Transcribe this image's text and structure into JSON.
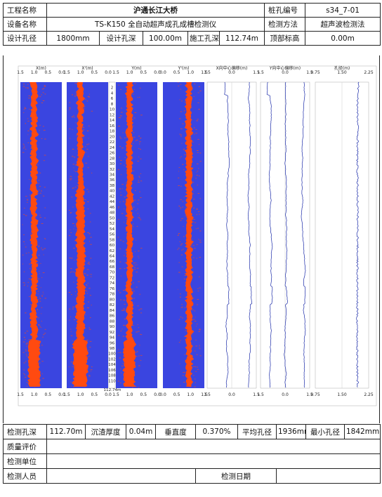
{
  "header": {
    "project_label": "工程名称",
    "project_value": "沪通长江大桥",
    "pile_label": "桩孔编号",
    "pile_value": "s34_7-01",
    "device_label": "设备名称",
    "device_value": "TS-K150 全自动超声成孔成槽检测仪",
    "method_label": "检测方法",
    "method_value": "超声波检测法",
    "design_diameter_label": "设计孔径",
    "design_diameter_value": "1800mm",
    "design_depth_label": "设计孔深",
    "design_depth_value": "100.00m",
    "construction_depth_label": "施工孔深",
    "construction_depth_value": "112.74m",
    "top_elevation_label": "顶部标高",
    "top_elevation_value": "0.00m"
  },
  "chart_data": {
    "type": "line",
    "depth_max": 112.74,
    "depth_max_label": "112.74m",
    "depth_ticks": [
      2,
      4,
      6,
      8,
      10,
      12,
      14,
      16,
      18,
      20,
      22,
      24,
      26,
      28,
      30,
      32,
      34,
      36,
      38,
      40,
      42,
      44,
      46,
      48,
      50,
      52,
      54,
      56,
      58,
      60,
      62,
      64,
      66,
      68,
      70,
      72,
      74,
      76,
      78,
      80,
      82,
      84,
      86,
      88,
      90,
      92,
      94,
      96,
      98,
      100,
      102,
      104,
      106,
      108,
      110
    ],
    "wall_tracks": [
      {
        "name": "X(m)",
        "ticks": [
          "1.5",
          "1.0",
          "0.5",
          "0.0"
        ]
      },
      {
        "name": "X'(m)",
        "ticks": [
          "1.5",
          "1.0",
          "0.5",
          "0.0"
        ]
      },
      {
        "name": "Y(m)",
        "ticks": [
          "1.5",
          "1.0",
          "0.5",
          "0.0"
        ]
      },
      {
        "name": "Y'(m)",
        "ticks": [
          "0.0",
          "0.5",
          "1.0",
          "1.5"
        ]
      }
    ],
    "offset_tracks": [
      {
        "name": "X向中心偏移(m)",
        "ticks": [
          "1.5",
          "0.0",
          "1.5"
        ]
      },
      {
        "name": "Y向中心偏移(m)",
        "ticks": [
          "1.5",
          "0.0",
          "1.5"
        ]
      }
    ],
    "diameter_track": {
      "name": "孔径(m)",
      "ticks": [
        "0.75",
        "1.50",
        "2.25"
      ],
      "profile": [
        [
          0,
          1.96
        ],
        [
          6,
          1.95
        ],
        [
          10,
          1.93
        ],
        [
          14,
          1.94
        ],
        [
          18,
          1.95
        ],
        [
          22,
          1.94
        ],
        [
          30,
          1.93
        ],
        [
          40,
          1.94
        ],
        [
          60,
          1.94
        ],
        [
          80,
          1.93
        ],
        [
          100,
          1.93
        ],
        [
          112,
          1.94
        ]
      ]
    },
    "colors": {
      "background": "#3a45e0",
      "wall_echo": "#ff4a10",
      "curve": "#1a2aa8"
    }
  },
  "footer": {
    "detect_depth_label": "检测孔深",
    "detect_depth_value": "112.70m",
    "sediment_label": "沉渣厚度",
    "sediment_value": "0.04m",
    "verticality_label": "垂直度",
    "verticality_value": "0.370%",
    "avg_diameter_label": "平均孔径",
    "avg_diameter_value": "1936mm",
    "min_diameter_label": "最小孔径",
    "min_diameter_value": "1842mm",
    "quality_label": "质量评价",
    "unit_label": "检测单位",
    "person_label": "检测人员",
    "date_label": "检测日期"
  }
}
